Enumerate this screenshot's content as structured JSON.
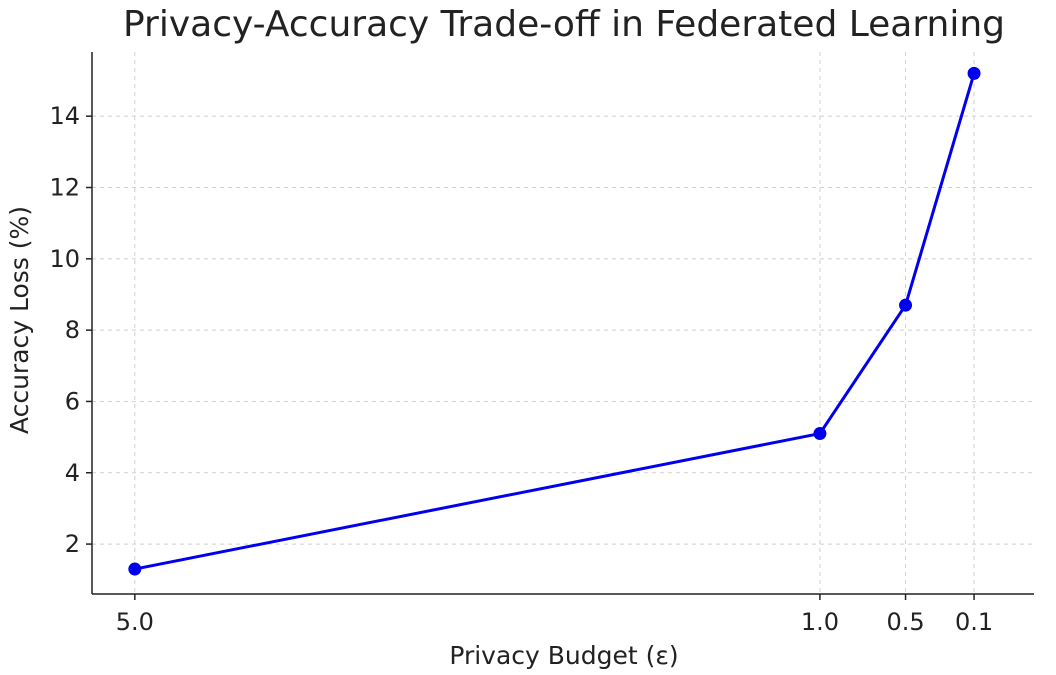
{
  "chart_data": {
    "type": "line",
    "title": "Privacy-Accuracy Trade-off in Federated Learning",
    "xlabel": "Privacy Budget (ε)",
    "ylabel": "Accuracy Loss (%)",
    "x": [
      5.0,
      1.0,
      0.5,
      0.1
    ],
    "x_tick_labels": [
      "5.0",
      "1.0",
      "0.5",
      "0.1"
    ],
    "x_axis_inverted": true,
    "y_ticks": [
      2,
      4,
      6,
      8,
      10,
      12,
      14
    ],
    "y_tick_labels": [
      "2",
      "4",
      "6",
      "8",
      "10",
      "12",
      "14"
    ],
    "ylim": [
      0.6,
      15.8
    ],
    "xlim": [
      5.25,
      -0.25
    ],
    "grid": true,
    "series": [
      {
        "values": [
          1.3,
          5.1,
          8.7,
          15.2
        ],
        "color": "#0000ee",
        "marker": "circle"
      }
    ]
  }
}
